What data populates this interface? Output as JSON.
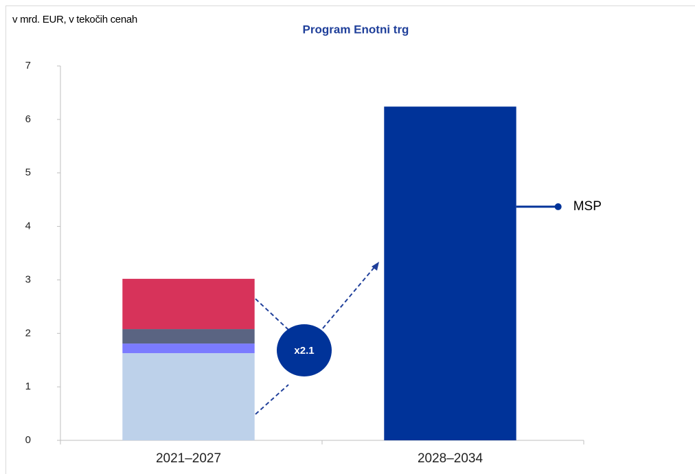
{
  "chart_data": {
    "type": "bar",
    "stacked": true,
    "title": "Program Enotni trg",
    "ylabel": "v mrd. EUR, v tekočih cenah",
    "categories": [
      "2021–2027",
      "2028–2034"
    ],
    "series": [
      {
        "color": "#bdd1ea",
        "values": [
          1.63,
          null
        ]
      },
      {
        "color": "#7b7bff",
        "values": [
          0.18,
          null
        ]
      },
      {
        "color": "#5a6482",
        "values": [
          0.27,
          null
        ]
      },
      {
        "color": "#d7335a",
        "values": [
          0.94,
          null
        ]
      },
      {
        "name": "MSP",
        "color": "#003399",
        "values": [
          null,
          6.24
        ]
      }
    ],
    "annotation": "x2.1",
    "ylim": [
      0,
      7
    ],
    "yticks": [
      0,
      1,
      2,
      3,
      4,
      5,
      6,
      7
    ]
  }
}
